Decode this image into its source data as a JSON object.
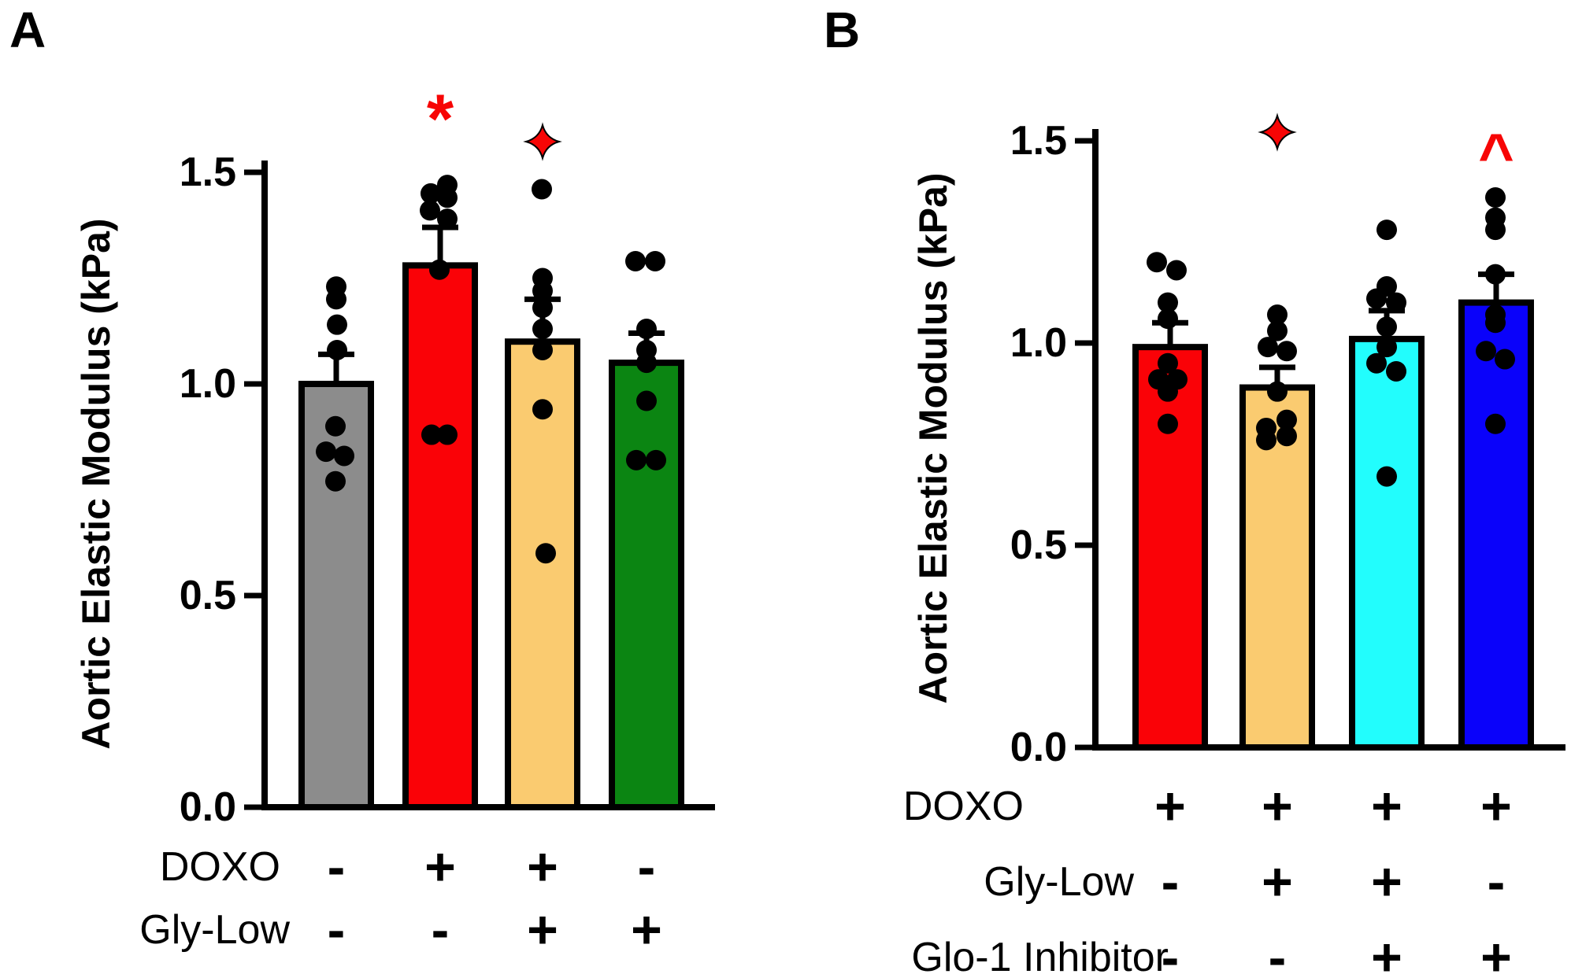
{
  "style": {
    "significance_color": "#F70505",
    "dot_color": "#000000",
    "axis_color": "#000000",
    "background": "#ffffff"
  },
  "chart_data": [
    {
      "type": "bar",
      "panel_label": "A",
      "title": "",
      "xlabel": "",
      "ylabel": "Aortic Elastic Modulus (kPa)",
      "ylim": [
        0,
        1.5
      ],
      "yticks": [
        "0.0",
        "0.5",
        "1.0",
        "1.5"
      ],
      "grid": false,
      "legend": "none",
      "bars": [
        {
          "fill": "#8C8C8C",
          "mean": 1.0,
          "sem_upper": 1.07,
          "significance": null,
          "points": [
            [
              1.23,
              0
            ],
            [
              1.2,
              0
            ],
            [
              1.14,
              1
            ],
            [
              1.08,
              1
            ],
            [
              0.9,
              -1
            ],
            [
              0.84,
              -13
            ],
            [
              0.83,
              10
            ],
            [
              0.77,
              -1
            ]
          ]
        },
        {
          "fill": "#FA0207",
          "mean": 1.28,
          "sem_upper": 1.37,
          "significance": {
            "name": "asterisk",
            "symbol": "*"
          },
          "points": [
            [
              1.47,
              9
            ],
            [
              1.45,
              -12
            ],
            [
              1.44,
              9
            ],
            [
              1.41,
              -13
            ],
            [
              1.39,
              9
            ],
            [
              1.27,
              -1
            ],
            [
              0.88,
              9
            ],
            [
              0.88,
              -11
            ]
          ]
        },
        {
          "fill": "#FACB70",
          "mean": 1.1,
          "sem_upper": 1.2,
          "significance": {
            "name": "four-point-star",
            "symbol": "✦"
          },
          "points": [
            [
              1.46,
              -1
            ],
            [
              1.25,
              0
            ],
            [
              1.22,
              0
            ],
            [
              1.18,
              0
            ],
            [
              1.13,
              0
            ],
            [
              1.08,
              0
            ],
            [
              0.94,
              0
            ],
            [
              0.6,
              4
            ]
          ]
        },
        {
          "fill": "#0B8512",
          "mean": 1.05,
          "sem_upper": 1.12,
          "significance": null,
          "points": [
            [
              1.29,
              -14
            ],
            [
              1.29,
              11
            ],
            [
              1.13,
              0
            ],
            [
              1.08,
              0
            ],
            [
              1.05,
              0
            ],
            [
              0.96,
              0
            ],
            [
              0.82,
              -13
            ],
            [
              0.82,
              12
            ]
          ]
        }
      ],
      "condition_rows": [
        {
          "label": "DOXO",
          "values": [
            "-",
            "+",
            "+",
            "-"
          ]
        },
        {
          "label": "Gly-Low",
          "values": [
            "-",
            "-",
            "+",
            "+"
          ]
        }
      ]
    },
    {
      "type": "bar",
      "panel_label": "B",
      "title": "",
      "xlabel": "",
      "ylabel": "Aortic Elastic Modulus (kPa)",
      "ylim": [
        0,
        1.5
      ],
      "yticks": [
        "0.0",
        "0.5",
        "1.0",
        "1.5"
      ],
      "grid": false,
      "legend": "none",
      "bars": [
        {
          "fill": "#FA0207",
          "mean": 0.99,
          "sem_upper": 1.05,
          "significance": null,
          "points": [
            [
              1.2,
              -17
            ],
            [
              1.18,
              8
            ],
            [
              1.1,
              -3
            ],
            [
              1.06,
              -3
            ],
            [
              0.95,
              -3
            ],
            [
              0.91,
              -15
            ],
            [
              0.91,
              9
            ],
            [
              0.88,
              -3
            ],
            [
              0.8,
              -3
            ]
          ]
        },
        {
          "fill": "#FACB70",
          "mean": 0.89,
          "sem_upper": 0.94,
          "significance": {
            "name": "four-point-star",
            "symbol": "✦"
          },
          "points": [
            [
              1.07,
              0
            ],
            [
              1.03,
              0
            ],
            [
              0.99,
              -12
            ],
            [
              0.98,
              12
            ],
            [
              0.88,
              0
            ],
            [
              0.81,
              12
            ],
            [
              0.79,
              -14
            ],
            [
              0.77,
              12
            ],
            [
              0.76,
              -14
            ]
          ]
        },
        {
          "fill": "#22FDFD",
          "mean": 1.01,
          "sem_upper": 1.08,
          "significance": null,
          "points": [
            [
              1.28,
              0
            ],
            [
              1.14,
              0
            ],
            [
              1.11,
              -13
            ],
            [
              1.1,
              12
            ],
            [
              1.04,
              0
            ],
            [
              0.99,
              0
            ],
            [
              0.95,
              -13
            ],
            [
              0.93,
              12
            ],
            [
              0.67,
              0
            ]
          ]
        },
        {
          "fill": "#0A02FA",
          "mean": 1.1,
          "sem_upper": 1.17,
          "significance": {
            "name": "caret",
            "symbol": "^"
          },
          "points": [
            [
              1.36,
              -1
            ],
            [
              1.31,
              -1
            ],
            [
              1.28,
              -1
            ],
            [
              1.17,
              -1
            ],
            [
              1.07,
              -1
            ],
            [
              1.05,
              -1
            ],
            [
              0.98,
              -13
            ],
            [
              0.96,
              11
            ],
            [
              0.8,
              -1
            ]
          ]
        }
      ],
      "condition_rows": [
        {
          "label": "DOXO",
          "values": [
            "+",
            "+",
            "+",
            "+"
          ]
        },
        {
          "label": "Gly-Low",
          "values": [
            "-",
            "+",
            "+",
            "-"
          ]
        },
        {
          "label": "Glo-1 Inhibitor",
          "values": [
            "-",
            "-",
            "+",
            "+"
          ]
        }
      ]
    }
  ]
}
